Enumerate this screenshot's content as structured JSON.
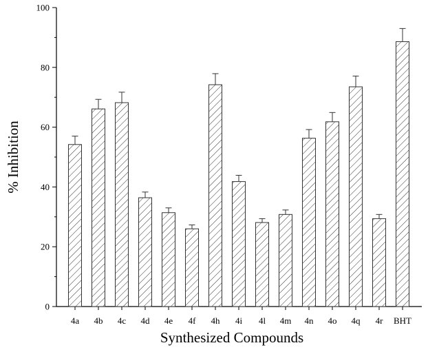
{
  "chart_data": {
    "type": "bar",
    "xlabel": "Synthesized Compounds",
    "ylabel": "% Inhibition",
    "ylim": [
      0,
      100
    ],
    "yticks": [
      0,
      20,
      40,
      60,
      80,
      100
    ],
    "categories": [
      "4a",
      "4b",
      "4c",
      "4d",
      "4e",
      "4f",
      "4h",
      "4i",
      "4l",
      "4m",
      "4n",
      "4o",
      "4q",
      "4r",
      "BHT"
    ],
    "values": [
      54.2,
      66.1,
      68.2,
      36.4,
      31.4,
      26.0,
      74.2,
      41.8,
      28.1,
      30.8,
      56.3,
      61.8,
      73.5,
      29.4,
      88.6
    ],
    "errors": [
      2.8,
      3.2,
      3.5,
      1.9,
      1.6,
      1.3,
      3.7,
      2.1,
      1.3,
      1.5,
      2.9,
      3.1,
      3.6,
      1.4,
      4.4
    ],
    "bar_fill": "diagonal-hatch",
    "color": "#333333",
    "grid": false
  }
}
